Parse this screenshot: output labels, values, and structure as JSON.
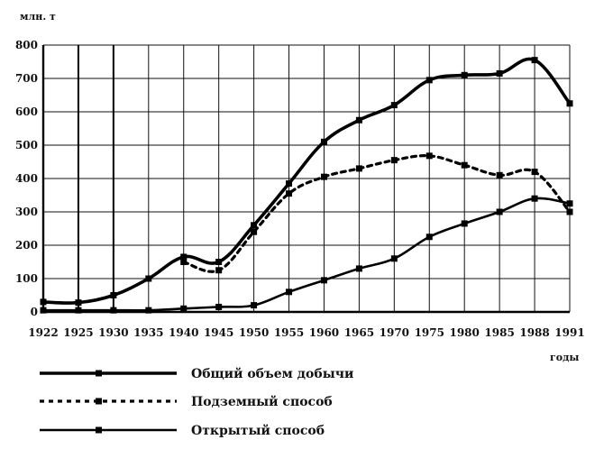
{
  "chart_data": {
    "type": "line",
    "ylabel": "млн. т",
    "xlabel": "годы",
    "ylim": [
      0,
      800
    ],
    "yticks": [
      0,
      100,
      200,
      300,
      400,
      500,
      600,
      700,
      800
    ],
    "x": [
      "1922",
      "1925",
      "1930",
      "1935",
      "1940",
      "1945",
      "1950",
      "1955",
      "1960",
      "1965",
      "1970",
      "1975",
      "1980",
      "1985",
      "1988",
      "1991"
    ],
    "grid": true,
    "legend_position": "bottom",
    "series": [
      {
        "name": "Общий объем добычи",
        "style": "solid-thick",
        "values": [
          30,
          28,
          50,
          100,
          165,
          150,
          260,
          385,
          510,
          575,
          620,
          695,
          710,
          715,
          755,
          625
        ]
      },
      {
        "name": "Подземный способ",
        "style": "dashed",
        "values": [
          null,
          null,
          null,
          null,
          150,
          125,
          240,
          355,
          405,
          430,
          455,
          468,
          440,
          410,
          420,
          300
        ]
      },
      {
        "name": "Открытый способ",
        "style": "solid-thin",
        "values": [
          5,
          5,
          5,
          5,
          10,
          15,
          20,
          60,
          95,
          130,
          160,
          225,
          265,
          300,
          340,
          325
        ]
      }
    ]
  }
}
